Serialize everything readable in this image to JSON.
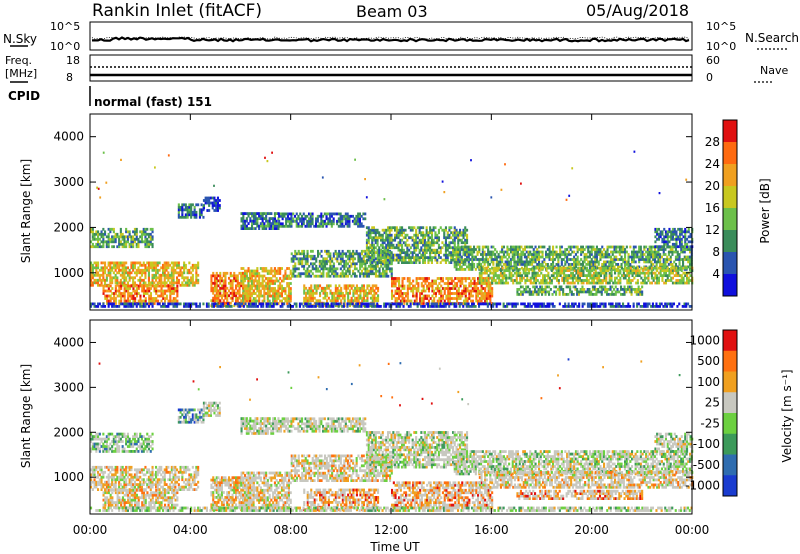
{
  "header": {
    "station": "Rankin Inlet (fitACF)",
    "beam": "Beam 03",
    "date": "05/Aug/2018"
  },
  "top_panels": {
    "nsky_label": "N.Sky",
    "nsearch_label": "N.Search",
    "nsky_ticks": [
      "10^5",
      "10^0"
    ],
    "nsky_right_ticks": [
      "10^5",
      "10^0"
    ],
    "freq_label_lines": [
      "Freq.",
      "[MHz]"
    ],
    "freq_ticks": [
      "18",
      "8"
    ],
    "nave_label": "Nave",
    "nave_ticks": [
      "60",
      "0"
    ],
    "cpid_label": "CPID",
    "cpid_text": "normal (fast) 151"
  },
  "chart_data": [
    {
      "type": "heatmap",
      "panel": "power",
      "ylabel": "Slant Range [km]",
      "ylim": [
        180,
        4500
      ],
      "yticks": [
        "4000",
        "3000",
        "2000",
        "1000"
      ],
      "xticks": [
        "00:00",
        "04:00",
        "08:00",
        "12:00",
        "16:00",
        "20:00",
        "00:00"
      ],
      "colorbar_label": "Power [dB]",
      "colorbar_ticks": [
        "28",
        "24",
        "20",
        "16",
        "12",
        "8",
        "4"
      ],
      "colors": [
        "#1010dd",
        "#2a55b0",
        "#3a8c5a",
        "#6cc04a",
        "#c8c820",
        "#f0a020",
        "#ff6a10",
        "#e01010"
      ]
    },
    {
      "type": "heatmap",
      "panel": "velocity",
      "ylabel": "Slant Range [km]",
      "xlabel": "Time UT",
      "ylim": [
        180,
        4500
      ],
      "yticks": [
        "4000",
        "3000",
        "2000",
        "1000"
      ],
      "xticks": [
        "00:00",
        "04:00",
        "08:00",
        "12:00",
        "16:00",
        "20:00",
        "00:00"
      ],
      "colorbar_label": "Velocity [m s⁻¹]",
      "colorbar_ticks": [
        "1000",
        "500",
        "100",
        "25",
        "-25",
        "-100",
        "-500",
        "-1000"
      ],
      "colors": [
        "#1a3ccf",
        "#2f6db0",
        "#3c9a5a",
        "#6cd040",
        "#c8c8c0",
        "#f0a020",
        "#ff7010",
        "#e01010"
      ]
    }
  ]
}
